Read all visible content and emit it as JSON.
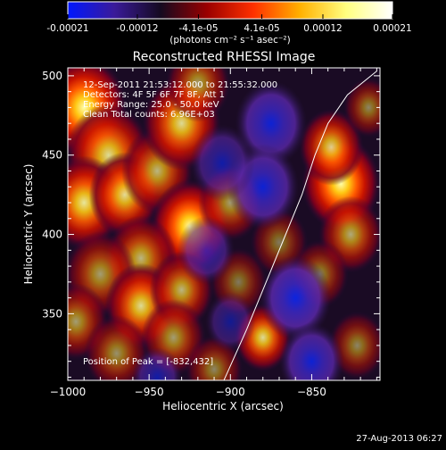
{
  "colorbar": {
    "tick_labels": [
      "-0.00021",
      "-0.00012",
      "-4.1e-05",
      "4.1e-05",
      "0.00012",
      "0.00021"
    ],
    "tick_values": [
      -0.00021,
      -0.00012,
      -4.1e-05,
      4.1e-05,
      0.00012,
      0.00021
    ],
    "range": [
      -0.00021,
      0.00021
    ],
    "units_label": "(photons cm⁻² s⁻¹ asec⁻²)",
    "colors": [
      "#0018ff",
      "#3a1a9a",
      "#150a20",
      "#9a0000",
      "#ff3000",
      "#ffb000",
      "#ffff80",
      "#ffffff"
    ]
  },
  "footer": {
    "timestamp": "27-Aug-2013 06:27"
  },
  "chart_data": {
    "type": "heatmap",
    "title": "Reconstructed RHESSI Image",
    "xlabel": "Heliocentric X (arcsec)",
    "ylabel": "Heliocentric Y (arcsec)",
    "xlim": [
      -1000,
      -808
    ],
    "ylim": [
      308,
      505
    ],
    "x_ticks": [
      -1000,
      -950,
      -900,
      -850
    ],
    "y_ticks": [
      350,
      400,
      450,
      500
    ],
    "x_tick_labels": [
      "−1000",
      "−950",
      "−900",
      "−850"
    ],
    "y_tick_labels": [
      "350",
      "400",
      "450",
      "500"
    ],
    "info_lines": [
      "12-Sep-2011 21:53:12.000 to 21:55:32.000",
      "Detectors: 4F 5F 6F 7F 8F, Att 1",
      "Energy Range: 25.0 - 50.0 keV",
      "Clean    Total counts: 6.96E+03"
    ],
    "peak_label": "Position of Peak = [-832,432]",
    "peak_position": [
      -832,
      432
    ],
    "limb_curve": [
      [
        -904,
        308
      ],
      [
        -890,
        340
      ],
      [
        -878,
        370
      ],
      [
        -866,
        400
      ],
      [
        -856,
        425
      ],
      [
        -848,
        450
      ],
      [
        -840,
        470
      ],
      [
        -828,
        488
      ],
      [
        -810,
        503
      ]
    ],
    "blobs": [
      {
        "x": -990,
        "y": 480,
        "s": 12,
        "a": 1.0
      },
      {
        "x": -975,
        "y": 450,
        "s": 12,
        "a": 0.85
      },
      {
        "x": -990,
        "y": 420,
        "s": 11,
        "a": 0.9
      },
      {
        "x": -965,
        "y": 425,
        "s": 10,
        "a": 0.85
      },
      {
        "x": -945,
        "y": 440,
        "s": 10,
        "a": 0.7
      },
      {
        "x": -930,
        "y": 470,
        "s": 11,
        "a": 0.85
      },
      {
        "x": -920,
        "y": 495,
        "s": 9,
        "a": 0.6
      },
      {
        "x": -925,
        "y": 405,
        "s": 11,
        "a": 1.0
      },
      {
        "x": -900,
        "y": 420,
        "s": 9,
        "a": 0.6
      },
      {
        "x": -955,
        "y": 385,
        "s": 10,
        "a": 0.7
      },
      {
        "x": -980,
        "y": 375,
        "s": 10,
        "a": 0.6
      },
      {
        "x": -955,
        "y": 355,
        "s": 10,
        "a": 0.85
      },
      {
        "x": -930,
        "y": 365,
        "s": 9,
        "a": 0.7
      },
      {
        "x": -995,
        "y": 345,
        "s": 9,
        "a": 0.6
      },
      {
        "x": -970,
        "y": 325,
        "s": 9,
        "a": 0.55
      },
      {
        "x": -935,
        "y": 335,
        "s": 9,
        "a": 0.6
      },
      {
        "x": -910,
        "y": 315,
        "s": 8,
        "a": 0.5
      },
      {
        "x": -880,
        "y": 335,
        "s": 8,
        "a": 0.85
      },
      {
        "x": -895,
        "y": 370,
        "s": 8,
        "a": 0.45
      },
      {
        "x": -870,
        "y": 395,
        "s": 8,
        "a": 0.45
      },
      {
        "x": -832,
        "y": 432,
        "s": 11,
        "a": 1.0
      },
      {
        "x": -838,
        "y": 455,
        "s": 9,
        "a": 0.8
      },
      {
        "x": -826,
        "y": 400,
        "s": 9,
        "a": 0.65
      },
      {
        "x": -845,
        "y": 375,
        "s": 8,
        "a": 0.5
      },
      {
        "x": -822,
        "y": 330,
        "s": 8,
        "a": 0.5
      },
      {
        "x": -815,
        "y": 480,
        "s": 7,
        "a": 0.5
      },
      {
        "x": -875,
        "y": 470,
        "s": -10,
        "a": 0.8
      },
      {
        "x": -880,
        "y": 430,
        "s": -10,
        "a": 0.8
      },
      {
        "x": -905,
        "y": 445,
        "s": -9,
        "a": 0.6
      },
      {
        "x": -860,
        "y": 360,
        "s": -10,
        "a": 0.85
      },
      {
        "x": -850,
        "y": 320,
        "s": -9,
        "a": 0.8
      },
      {
        "x": -915,
        "y": 390,
        "s": -8,
        "a": 0.6
      },
      {
        "x": -945,
        "y": 310,
        "s": -7,
        "a": 0.6
      },
      {
        "x": -900,
        "y": 345,
        "s": -7,
        "a": 0.5
      }
    ]
  }
}
